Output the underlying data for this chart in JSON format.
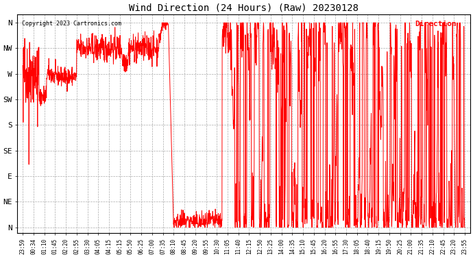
{
  "title": "Wind Direction (24 Hours) (Raw) 20230128",
  "copyright": "Copyright 2023 Cartronics.com",
  "legend_label": "Direction",
  "line_color": "#ff0000",
  "background_color": "#ffffff",
  "grid_color": "#aaaaaa",
  "title_color": "#000000",
  "copyright_color": "#000000",
  "legend_color": "#ff0000",
  "ytick_labels": [
    "N",
    "NW",
    "W",
    "SW",
    "S",
    "SE",
    "E",
    "NE",
    "N"
  ],
  "ytick_values": [
    360,
    315,
    270,
    225,
    180,
    135,
    90,
    45,
    0
  ],
  "ylim": [
    -10,
    375
  ],
  "xtick_labels": [
    "23:59",
    "00:34",
    "01:10",
    "01:45",
    "02:20",
    "02:55",
    "03:30",
    "04:05",
    "04:15",
    "05:15",
    "05:50",
    "06:25",
    "07:00",
    "07:35",
    "08:10",
    "08:45",
    "09:20",
    "09:55",
    "10:30",
    "11:05",
    "11:40",
    "12:15",
    "12:50",
    "13:25",
    "14:00",
    "14:35",
    "15:10",
    "15:45",
    "16:20",
    "16:55",
    "17:30",
    "18:05",
    "18:40",
    "19:15",
    "19:50",
    "20:25",
    "21:00",
    "21:35",
    "22:10",
    "22:45",
    "23:20",
    "23:55"
  ],
  "num_xticks": 42
}
